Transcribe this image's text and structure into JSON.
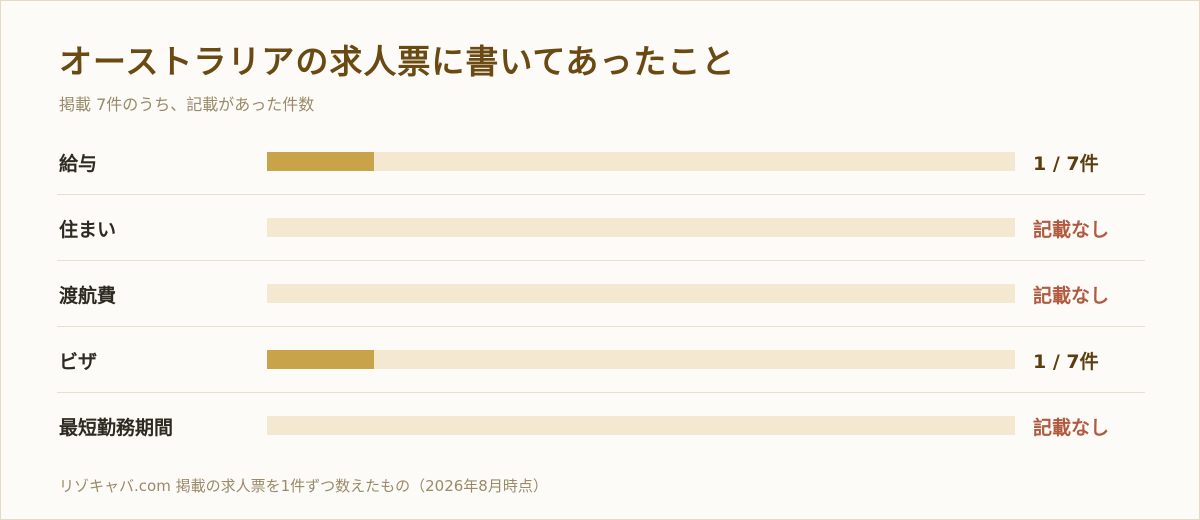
{
  "colors": {
    "title": "#6a4a12",
    "bar_fill": "#c9a34a",
    "bar_track": "#f5e8d0",
    "value_present": "#5a3e10",
    "value_missing": "#b05a40"
  },
  "chart_data": {
    "type": "bar",
    "orientation": "horizontal",
    "title": "オーストラリアの求人票に書いてあったこと",
    "subtitle": "掲載 7件のうち、記載があった件数",
    "total": 7,
    "categories": [
      "給与",
      "住まい",
      "渡航費",
      "ビザ",
      "最短勤務期間"
    ],
    "values": [
      1,
      0,
      0,
      1,
      0
    ],
    "value_labels": [
      "1 / 7件",
      "記載なし",
      "記載なし",
      "1 / 7件",
      "記載なし"
    ],
    "xlim": [
      0,
      7
    ],
    "footer": "リゾキャバ.com 掲載の求人票を1件ずつ数えたもの（2026年8月時点）"
  }
}
